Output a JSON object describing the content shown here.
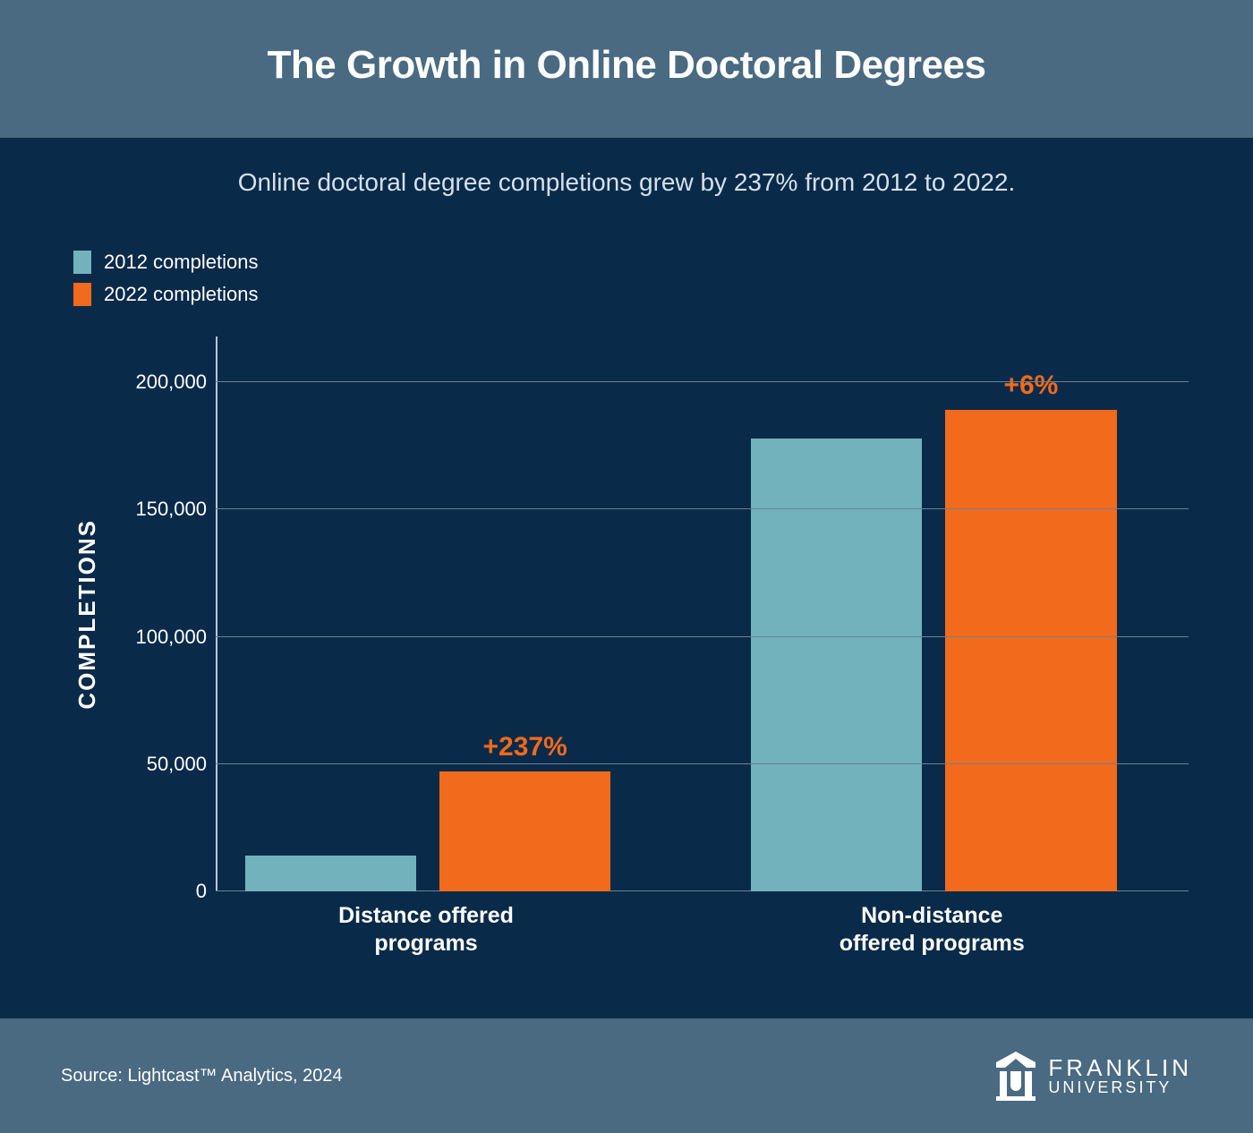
{
  "colors": {
    "title_band_bg": "#4a6a82",
    "body_bg": "#0a2a4a",
    "footer_bg": "#4a6a82",
    "title_text": "#ffffff",
    "subtitle_text": "#d5e0ea",
    "legend_text": "#ffffff",
    "axis_text": "#ffffff",
    "grid_line": "#6b8294",
    "axis_line": "#b9c6d1",
    "series_2012": "#72b2bd",
    "series_2022": "#f26a1b",
    "pct_label": "#f26a1b",
    "xlabel_text": "#ffffff",
    "source_text": "#ffffff",
    "logo_text": "#ffffff"
  },
  "title": {
    "text": "The Growth in Online Doctoral Degrees",
    "fontsize": 44
  },
  "subtitle": {
    "text": "Online doctoral degree completions grew by 237% from 2012 to 2022.",
    "fontsize": 28
  },
  "legend": {
    "items": [
      {
        "label": "2012 completions",
        "color_key": "series_2012"
      },
      {
        "label": "2022 completions",
        "color_key": "series_2022"
      }
    ]
  },
  "chart": {
    "type": "bar",
    "y_axis_title": "COMPLETIONS",
    "y_axis_title_fontsize": 26,
    "ylim": [
      0,
      218000
    ],
    "yticks": [
      0,
      50000,
      100000,
      150000,
      200000
    ],
    "ytick_labels": [
      "0",
      "50,000",
      "100,000",
      "150,000",
      "200,000"
    ],
    "groups": [
      {
        "label_line1": "Distance offered",
        "label_line2": "programs",
        "left_pct": 3,
        "width_pct": 40,
        "bars": [
          {
            "series": "2012",
            "value": 14000,
            "color_key": "series_2012",
            "offset_pct": 0,
            "width_pct": 44
          },
          {
            "series": "2022",
            "value": 47000,
            "color_key": "series_2022",
            "offset_pct": 50,
            "width_pct": 44
          }
        ],
        "pct_label": {
          "text": "+237%",
          "fontsize": 30,
          "anchor_bar_index": 1
        }
      },
      {
        "label_line1": "Non-distance",
        "label_line2": "offered programs",
        "left_pct": 55,
        "width_pct": 40,
        "bars": [
          {
            "series": "2012",
            "value": 178000,
            "color_key": "series_2012",
            "offset_pct": 0,
            "width_pct": 44
          },
          {
            "series": "2022",
            "value": 189000,
            "color_key": "series_2022",
            "offset_pct": 50,
            "width_pct": 44
          }
        ],
        "pct_label": {
          "text": "+6%",
          "fontsize": 30,
          "anchor_bar_index": 1
        }
      }
    ],
    "xlabel_fontsize": 25
  },
  "footer": {
    "source": "Source: Lightcast™ Analytics, 2024",
    "logo": {
      "top": "FRANKLIN",
      "bottom": "UNIVERSITY"
    }
  }
}
